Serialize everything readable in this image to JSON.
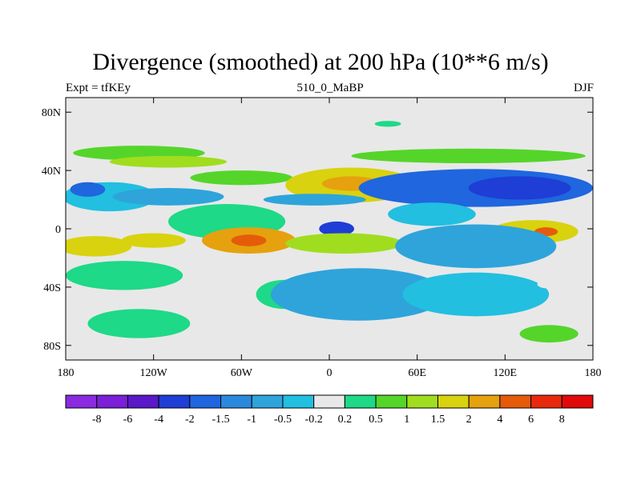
{
  "title": "Divergence (smoothed) at 200 hPa (10**6 m/s)",
  "subtitle_left": "Expt = tfKEy",
  "subtitle_center": "510_0_MaBP",
  "subtitle_right": "DJF",
  "chart_data": {
    "type": "heatmap",
    "title": "Divergence (smoothed) at 200 hPa (10**6 m/s)",
    "xlim": [
      -180,
      180
    ],
    "ylim": [
      -90,
      90
    ],
    "x_ticks": [
      {
        "value": -180,
        "label": "180"
      },
      {
        "value": -120,
        "label": "120W"
      },
      {
        "value": -60,
        "label": "60W"
      },
      {
        "value": 0,
        "label": "0"
      },
      {
        "value": 60,
        "label": "60E"
      },
      {
        "value": 120,
        "label": "120E"
      },
      {
        "value": 180,
        "label": "180"
      }
    ],
    "y_ticks": [
      {
        "value": 80,
        "label": "80N"
      },
      {
        "value": 40,
        "label": "40N"
      },
      {
        "value": 0,
        "label": "0"
      },
      {
        "value": -40,
        "label": "40S"
      },
      {
        "value": -80,
        "label": "80S"
      }
    ],
    "colorbar": {
      "colors": [
        "#8a2be2",
        "#7b1fd8",
        "#5a18c8",
        "#1e3ed6",
        "#1f66df",
        "#2b89dd",
        "#2ea4db",
        "#22bfe0",
        "#e8e8e8",
        "#1ed987",
        "#55d52a",
        "#a0dd1e",
        "#d9d20e",
        "#e6a10e",
        "#e55b0a",
        "#e8290d",
        "#e00a0a"
      ],
      "labels": [
        "-8",
        "-6",
        "-4",
        "-2",
        "-1.5",
        "-1",
        "-0.5",
        "-0.2",
        "0.2",
        "0.5",
        "1",
        "1.5",
        "2",
        "4",
        "6",
        "8"
      ]
    },
    "regions": [
      {
        "lon": -130,
        "lat": 52,
        "rlon": 45,
        "rlat": 5,
        "level": 10
      },
      {
        "lon": -110,
        "lat": 46,
        "rlon": 40,
        "rlat": 4,
        "level": 11
      },
      {
        "lon": -150,
        "lat": 22,
        "rlon": 32,
        "rlat": 10,
        "level": 7
      },
      {
        "lon": -165,
        "lat": 27,
        "rlon": 12,
        "rlat": 5,
        "level": 4
      },
      {
        "lon": -110,
        "lat": 22,
        "rlon": 38,
        "rlat": 6,
        "level": 6
      },
      {
        "lon": -60,
        "lat": 35,
        "rlon": 35,
        "rlat": 5,
        "level": 10
      },
      {
        "lon": 15,
        "lat": 30,
        "rlon": 45,
        "rlat": 12,
        "level": 12
      },
      {
        "lon": 15,
        "lat": 31,
        "rlon": 20,
        "rlat": 5,
        "level": 13
      },
      {
        "lon": -10,
        "lat": 20,
        "rlon": 35,
        "rlat": 4,
        "level": 6
      },
      {
        "lon": 100,
        "lat": 28,
        "rlon": 80,
        "rlat": 13,
        "level": 4
      },
      {
        "lon": 130,
        "lat": 28,
        "rlon": 35,
        "rlat": 8,
        "level": 3
      },
      {
        "lon": 95,
        "lat": 50,
        "rlon": 80,
        "rlat": 5,
        "level": 10
      },
      {
        "lon": 40,
        "lat": 72,
        "rlon": 9,
        "rlat": 2,
        "level": 9
      },
      {
        "lon": -70,
        "lat": 5,
        "rlon": 40,
        "rlat": 12,
        "level": 9
      },
      {
        "lon": -55,
        "lat": -8,
        "rlon": 32,
        "rlat": 9,
        "level": 13
      },
      {
        "lon": -55,
        "lat": -8,
        "rlon": 12,
        "rlat": 4,
        "level": 14
      },
      {
        "lon": -160,
        "lat": -12,
        "rlon": 25,
        "rlat": 7,
        "level": 12
      },
      {
        "lon": -120,
        "lat": -8,
        "rlon": 22,
        "rlat": 5,
        "level": 12
      },
      {
        "lon": 5,
        "lat": 0,
        "rlon": 12,
        "rlat": 5,
        "level": 3
      },
      {
        "lon": 10,
        "lat": -10,
        "rlon": 40,
        "rlat": 7,
        "level": 11
      },
      {
        "lon": 140,
        "lat": -2,
        "rlon": 30,
        "rlat": 8,
        "level": 12
      },
      {
        "lon": 148,
        "lat": -2,
        "rlon": 8,
        "rlat": 3,
        "level": 14
      },
      {
        "lon": 100,
        "lat": -12,
        "rlon": 55,
        "rlat": 15,
        "level": 6
      },
      {
        "lon": 70,
        "lat": 10,
        "rlon": 30,
        "rlat": 8,
        "level": 7
      },
      {
        "lon": -140,
        "lat": -32,
        "rlon": 40,
        "rlat": 10,
        "level": 9
      },
      {
        "lon": -30,
        "lat": -45,
        "rlon": 20,
        "rlat": 10,
        "level": 9
      },
      {
        "lon": 20,
        "lat": -45,
        "rlon": 60,
        "rlat": 18,
        "level": 6
      },
      {
        "lon": 100,
        "lat": -45,
        "rlon": 50,
        "rlat": 15,
        "level": 7
      },
      {
        "lon": 150,
        "lat": -38,
        "rlon": 8,
        "rlat": 3,
        "level": 8
      },
      {
        "lon": -130,
        "lat": -65,
        "rlon": 35,
        "rlat": 10,
        "level": 9
      },
      {
        "lon": 150,
        "lat": -72,
        "rlon": 20,
        "rlat": 6,
        "level": 10
      }
    ]
  }
}
